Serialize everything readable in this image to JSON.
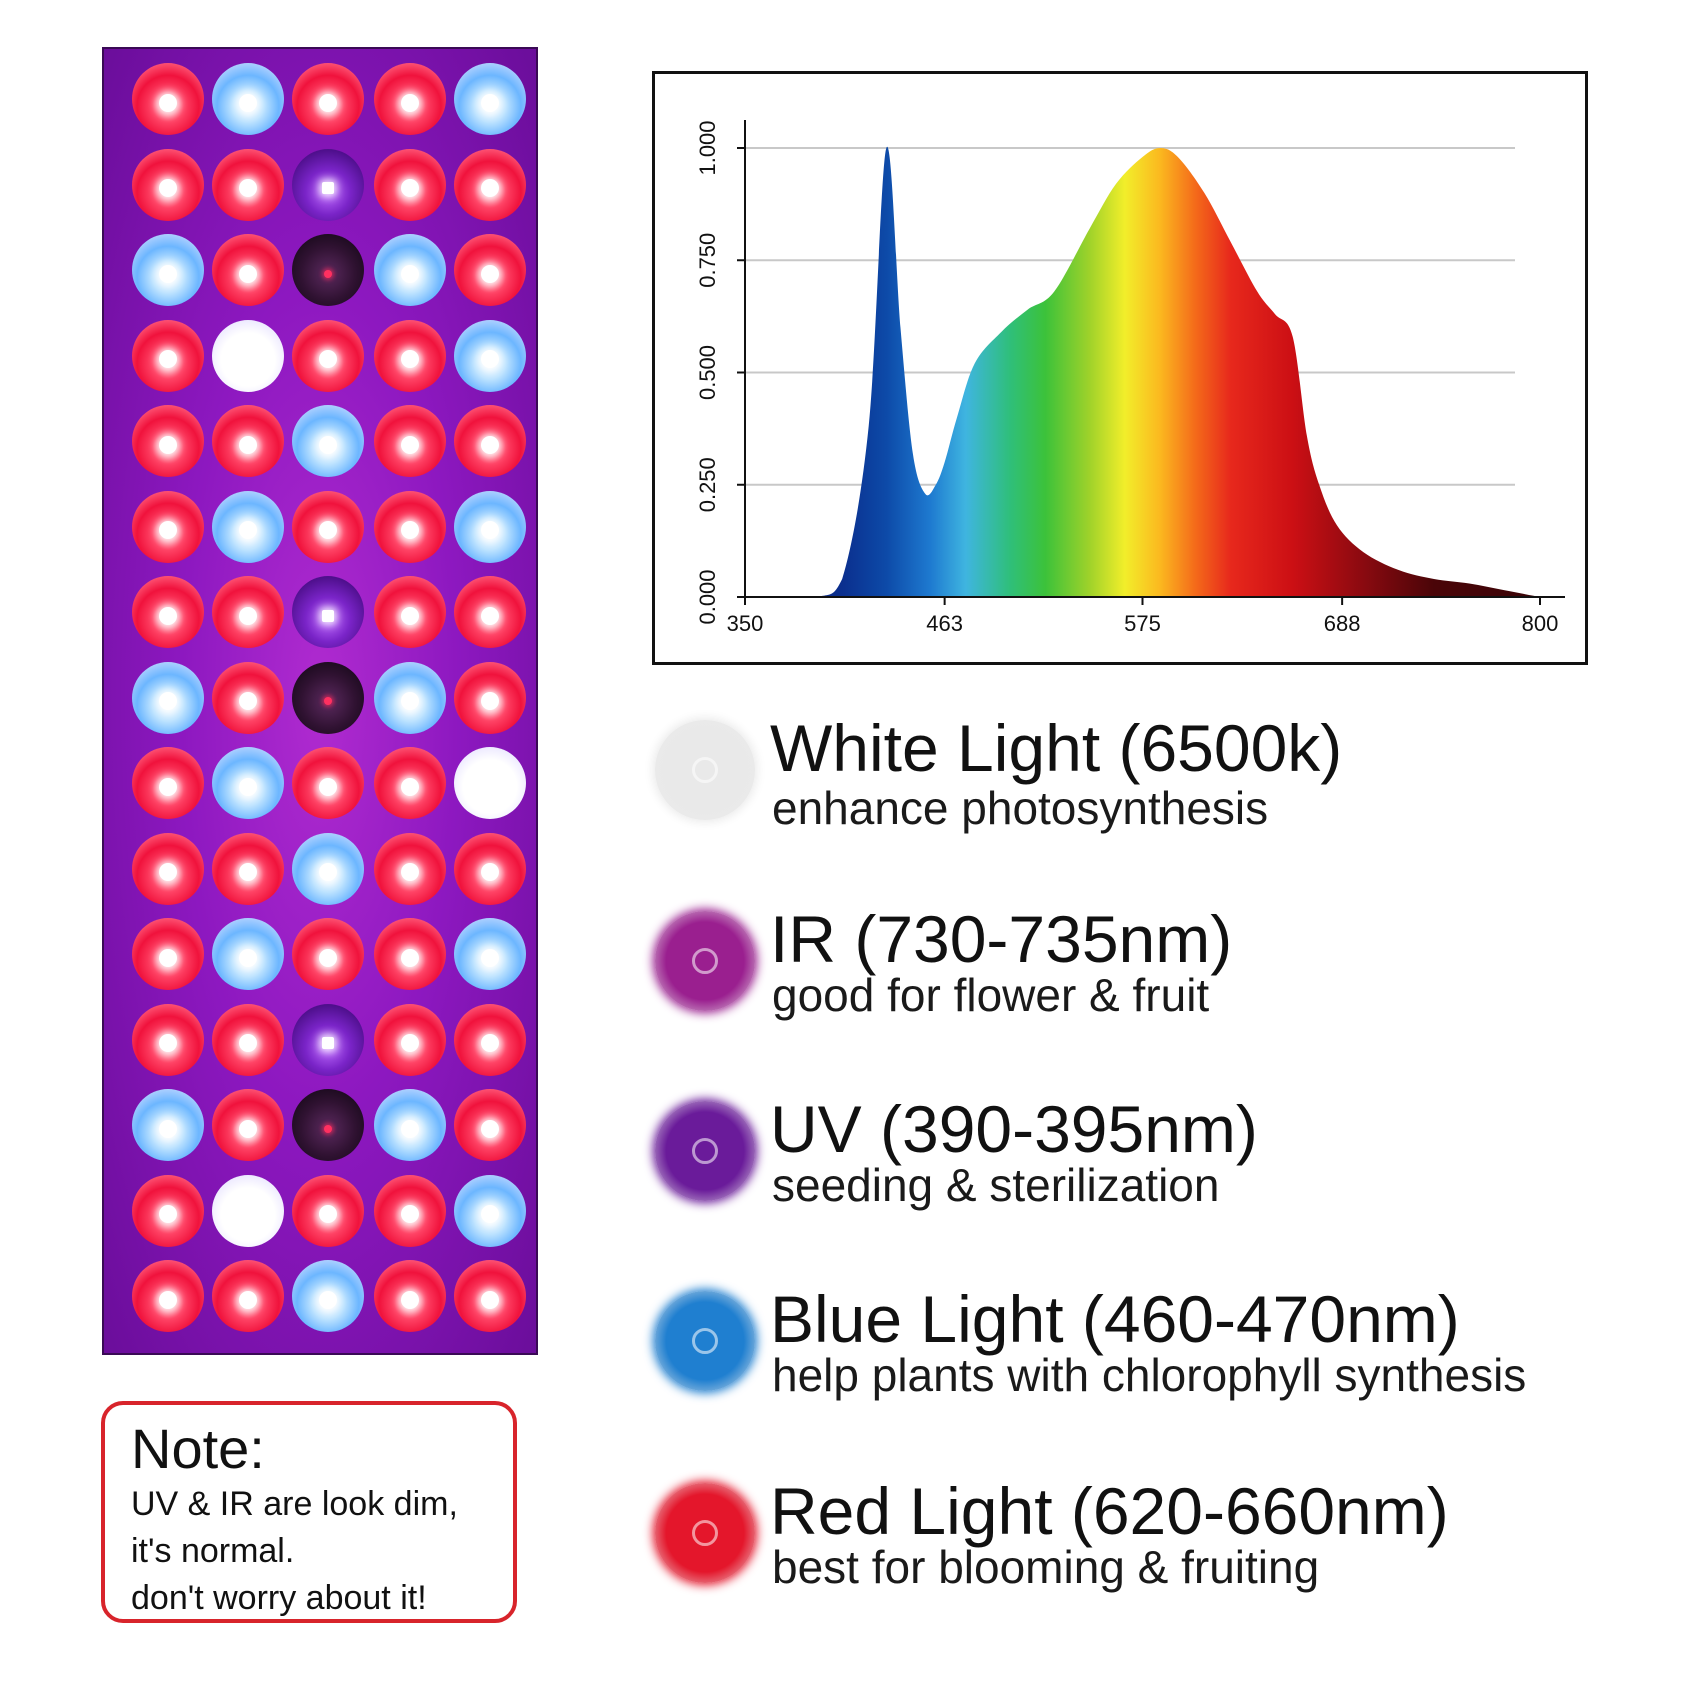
{
  "panel": {
    "led_rows": [
      [
        "red",
        "blue",
        "red",
        "red",
        "blue"
      ],
      [
        "red",
        "red",
        "uv",
        "red",
        "red"
      ],
      [
        "blue",
        "red",
        "ir",
        "blue",
        "red"
      ],
      [
        "red",
        "white",
        "red",
        "red",
        "blue"
      ],
      [
        "red",
        "red",
        "blue",
        "red",
        "red"
      ],
      [
        "red",
        "blue",
        "red",
        "red",
        "blue"
      ],
      [
        "red",
        "red",
        "uv",
        "red",
        "red"
      ],
      [
        "blue",
        "red",
        "ir",
        "blue",
        "red"
      ],
      [
        "red",
        "blue",
        "red",
        "red",
        "white"
      ],
      [
        "red",
        "red",
        "blue",
        "red",
        "red"
      ],
      [
        "red",
        "blue",
        "red",
        "red",
        "blue"
      ],
      [
        "red",
        "red",
        "uv",
        "red",
        "red"
      ],
      [
        "blue",
        "red",
        "ir",
        "blue",
        "red"
      ],
      [
        "red",
        "white",
        "red",
        "red",
        "blue"
      ],
      [
        "red",
        "red",
        "blue",
        "red",
        "red"
      ]
    ]
  },
  "note": {
    "title": "Note:",
    "lines": [
      "UV & IR are look dim,",
      "it's normal.",
      "don't worry about it!"
    ]
  },
  "chart_data": {
    "type": "area",
    "x": [
      350,
      390,
      405,
      420,
      430,
      438,
      445,
      452,
      458,
      463,
      470,
      480,
      495,
      510,
      525,
      545,
      560,
      575,
      585,
      595,
      610,
      625,
      640,
      650,
      660,
      668,
      675,
      685,
      700,
      720,
      740,
      760,
      780,
      800
    ],
    "y": [
      0.0,
      0.0,
      0.04,
      0.38,
      1.0,
      0.6,
      0.32,
      0.23,
      0.25,
      0.3,
      0.4,
      0.52,
      0.59,
      0.64,
      0.68,
      0.82,
      0.92,
      0.98,
      1.0,
      0.98,
      0.9,
      0.79,
      0.68,
      0.63,
      0.58,
      0.36,
      0.25,
      0.16,
      0.1,
      0.06,
      0.04,
      0.03,
      0.015,
      0.0
    ],
    "xticks": [
      "350",
      "463",
      "575",
      "688",
      "800"
    ],
    "yticks": [
      "0.000",
      "0.250",
      "0.500",
      "0.750",
      "1.000"
    ],
    "xlim": [
      350,
      800
    ],
    "ylim": [
      0,
      1
    ],
    "grid": true,
    "fill": "visible-spectrum gradient"
  },
  "legend": [
    {
      "title": "White Light (6500k)",
      "subtitle": "enhance photosynthesis",
      "color": "#e9e9e9"
    },
    {
      "title": "IR (730-735nm)",
      "subtitle": "good for flower & fruit",
      "color": "#9a1f8f"
    },
    {
      "title": "UV (390-395nm)",
      "subtitle": "seeding & sterilization",
      "color": "#6a1b9a"
    },
    {
      "title": "Blue Light (460-470nm)",
      "subtitle": "help plants with chlorophyll synthesis",
      "color": "#1f7fd0"
    },
    {
      "title": "Red Light (620-660nm)",
      "subtitle": "best for blooming & fruiting",
      "color": "#e4162b"
    }
  ]
}
